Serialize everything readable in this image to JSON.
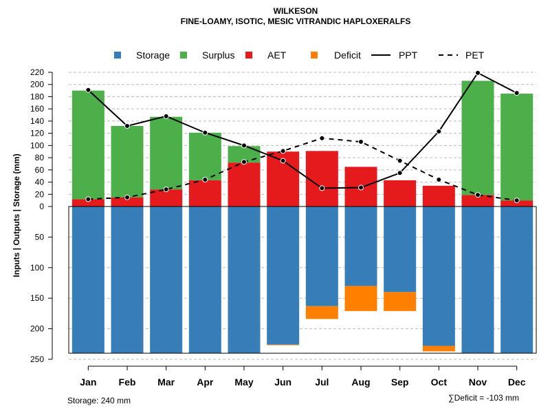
{
  "chart_data": {
    "type": "bar",
    "title": "WILKESON",
    "subtitle": "FINE-LOAMY, ISOTIC, MESIC VITRANDIC HAPLOXERALFS",
    "ylabel": "Inputs | Outputs | Storage    (mm)",
    "upper_ticks": [
      "220",
      "200",
      "180",
      "160",
      "140",
      "120",
      "100",
      "80",
      "60",
      "40",
      "20",
      "0"
    ],
    "upper_tick_values": [
      220,
      200,
      180,
      160,
      140,
      120,
      100,
      80,
      60,
      40,
      20,
      0
    ],
    "lower_ticks": [
      "50",
      "100",
      "150",
      "200",
      "250"
    ],
    "lower_tick_values": [
      50,
      100,
      150,
      200,
      250
    ],
    "categories": [
      "Jan",
      "Feb",
      "Mar",
      "Apr",
      "May",
      "Jun",
      "Jul",
      "Aug",
      "Sep",
      "Oct",
      "Nov",
      "Dec"
    ],
    "legend": [
      {
        "key": "storage",
        "label": "Storage",
        "kind": "box",
        "color": "#377EB8"
      },
      {
        "key": "surplus",
        "label": "Surplus",
        "kind": "box",
        "color": "#4DAF4A"
      },
      {
        "key": "aet",
        "label": "AET",
        "kind": "box",
        "color": "#E41A1C"
      },
      {
        "key": "deficit",
        "label": "Deficit",
        "kind": "box",
        "color": "#FF7F00"
      },
      {
        "key": "ppt",
        "label": "PPT",
        "kind": "solid",
        "color": "#000000"
      },
      {
        "key": "pet",
        "label": "PET",
        "kind": "dashed",
        "color": "#000000"
      }
    ],
    "series": {
      "aet": [
        12,
        15,
        28,
        43,
        72,
        90,
        91,
        65,
        43,
        34,
        19,
        10
      ],
      "surplus": [
        178,
        117,
        119,
        78,
        27,
        0,
        0,
        0,
        0,
        0,
        187,
        175
      ],
      "storage": [
        240,
        240,
        240,
        240,
        240,
        226,
        163,
        130,
        140,
        228,
        240,
        240
      ],
      "deficit": [
        0,
        0,
        0,
        0,
        0,
        1,
        21,
        41,
        31,
        9,
        0,
        0
      ],
      "ppt": [
        191,
        132,
        148,
        121,
        100,
        75,
        30,
        31,
        55,
        123,
        219,
        186
      ],
      "pet": [
        12,
        15,
        28,
        44,
        73,
        91,
        112,
        106,
        75,
        44,
        19,
        10
      ]
    },
    "storage_capacity": 240
  },
  "footnotes": {
    "storage": "Storage: 240 mm",
    "deficit": "∑Deficit = -103 mm"
  }
}
